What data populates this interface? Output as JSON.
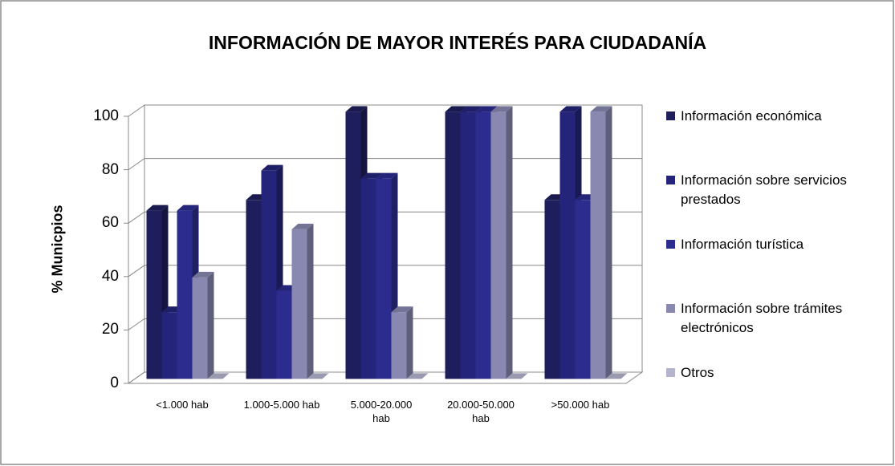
{
  "chart_data": {
    "type": "bar3d",
    "title": "INFORMACIÓN DE MAYOR INTERÉS PARA CIUDADANÍA",
    "y_label": "% Municpios",
    "categories": [
      "<1.000 hab",
      "1.000-5.000 hab",
      "5.000-20.000 hab",
      "20.000-50.000 hab",
      ">50.000 hab"
    ],
    "series": [
      {
        "name": "Información económica",
        "color": "#1e1e5c",
        "values": [
          63,
          67,
          100,
          100,
          67
        ]
      },
      {
        "name": "Información sobre servicios prestados",
        "color": "#24247a",
        "values": [
          25,
          78,
          75,
          100,
          100
        ]
      },
      {
        "name": "Información turística",
        "color": "#2c2c8e",
        "values": [
          63,
          33,
          75,
          100,
          67
        ]
      },
      {
        "name": "Información sobre trámites electrónicos",
        "color": "#8888b0",
        "values": [
          38,
          56,
          25,
          100,
          100
        ]
      },
      {
        "name": "Otros",
        "color": "#b4b4cf",
        "values": [
          0,
          0,
          0,
          0,
          0
        ]
      }
    ],
    "ylim": [
      0,
      100
    ],
    "yticks": [
      0,
      20,
      40,
      60,
      80,
      100
    ],
    "grid": true,
    "legend": "right"
  }
}
